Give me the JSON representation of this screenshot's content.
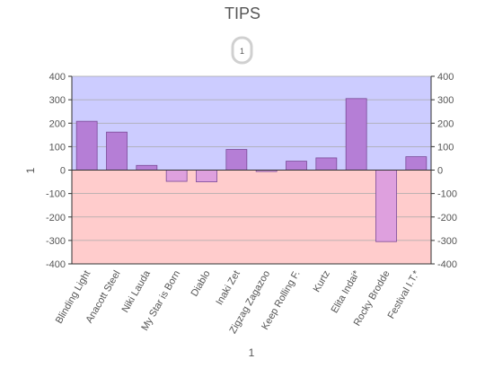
{
  "chart_data": {
    "type": "bar",
    "title": "TIPS",
    "legend_badge": "1",
    "xlabel": "1",
    "ylabel": "1",
    "categories": [
      "Blinding Light",
      "Anacott Steel",
      "Niki Lauda",
      "My Star is Born",
      "Diablo",
      "Inaki Zet",
      "Zigzag Zagazoo",
      "Keep Rolling F.",
      "Kurtz",
      "Elita Indai*",
      "Rocky Brodde",
      "Festival I.T.*"
    ],
    "values": [
      208,
      162,
      20,
      -48,
      -50,
      88,
      -6,
      38,
      52,
      305,
      -305,
      57
    ],
    "ylim": [
      -400,
      400
    ],
    "yticks": [
      "400",
      "300",
      "200",
      "100",
      "0",
      "-100",
      "-200",
      "-300",
      "-400"
    ],
    "grid": true,
    "legend_position": "top-center",
    "colors": {
      "positive_zone": "#ccccff",
      "negative_zone": "#ffcccc",
      "positive_bar": "#b57ed6",
      "negative_bar": "#dea0de",
      "bar_stroke": "#7a4a98",
      "grid": "#a9a9a9",
      "axis": "#333333",
      "text": "#555555"
    }
  }
}
